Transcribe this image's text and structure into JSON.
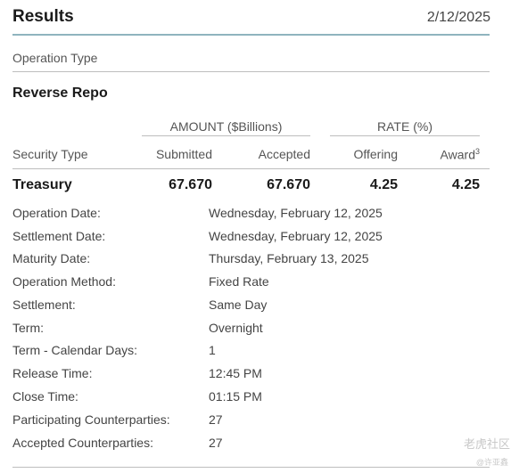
{
  "header": {
    "title": "Results",
    "date": "2/12/2025"
  },
  "operation_type_label": "Operation Type",
  "section_title": "Reverse Repo",
  "table": {
    "group_amount": "AMOUNT ($Billions)",
    "group_rate": "RATE (%)",
    "col_security_type": "Security Type",
    "col_submitted": "Submitted",
    "col_accepted": "Accepted",
    "col_offering": "Offering",
    "col_award": "Award",
    "col_award_sup": "3",
    "row": {
      "security": "Treasury",
      "submitted": "67.670",
      "accepted": "67.670",
      "offering": "4.25",
      "award": "4.25"
    }
  },
  "details": [
    {
      "label": "Operation Date:",
      "value": "Wednesday, February 12, 2025"
    },
    {
      "label": "Settlement Date:",
      "value": "Wednesday, February 12, 2025"
    },
    {
      "label": "Maturity Date:",
      "value": "Thursday, February 13, 2025"
    },
    {
      "label": "Operation Method:",
      "value": "Fixed Rate"
    },
    {
      "label": "Settlement:",
      "value": "Same Day"
    },
    {
      "label": "Term:",
      "value": "Overnight"
    },
    {
      "label": "Term - Calendar Days:",
      "value": "1"
    },
    {
      "label": "Release Time:",
      "value": "12:45 PM"
    },
    {
      "label": "Close Time:",
      "value": "01:15 PM"
    },
    {
      "label": "Participating Counterparties:",
      "value": "27"
    },
    {
      "label": "Accepted Counterparties:",
      "value": "27"
    }
  ],
  "watermark": {
    "text": "老虎社区",
    "sub": "@许亚鑫"
  }
}
